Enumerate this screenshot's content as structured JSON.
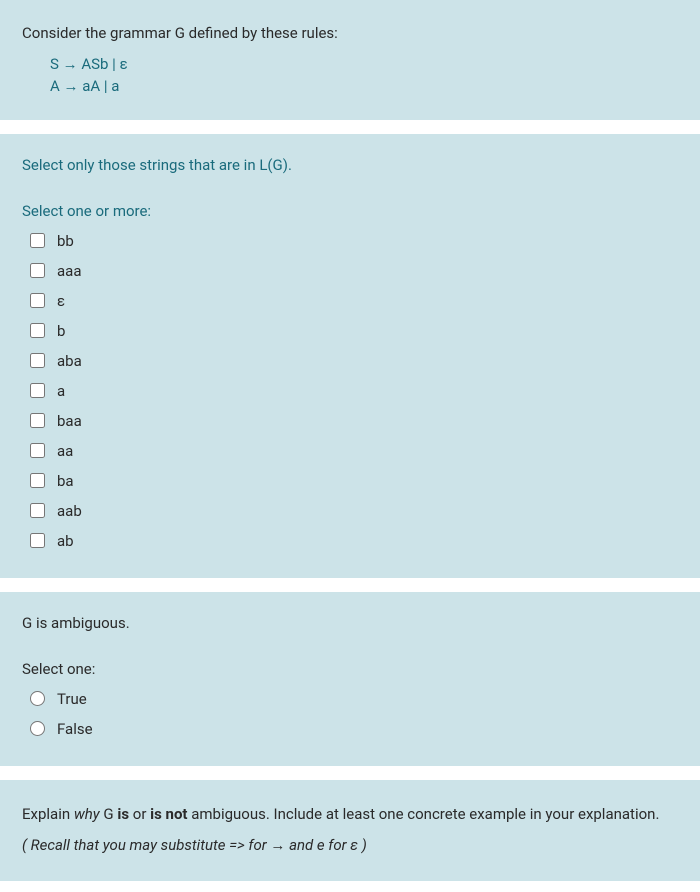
{
  "colors": {
    "panel_bg": "#cce3e8",
    "text_primary": "#2a2a2a",
    "text_accent": "#1a6b7c"
  },
  "q1": {
    "intro": "Consider the grammar G defined by these rules:",
    "rule1": "S → ASb | ε",
    "rule2": "A → aA | a"
  },
  "q2": {
    "prompt": "Select only those strings that are in L(G).",
    "instruction": "Select one or more:",
    "options": [
      "bb",
      "aaa",
      "ε",
      "b",
      "aba",
      "a",
      "baa",
      "aa",
      "ba",
      "aab",
      "ab"
    ]
  },
  "q3": {
    "prompt": "G is ambiguous.",
    "instruction": "Select one:",
    "options": [
      "True",
      "False"
    ]
  },
  "q4": {
    "pre": "Explain ",
    "why_italic": "why",
    "mid1": " G ",
    "is_bold": "is",
    "mid2": " or ",
    "isnot_bold": "is not",
    "post": " ambiguous.  Include at least one concrete example in your explanation.",
    "recall_pre": "( Recall that you may substitute   =>  for  →   and   e  for  ε )"
  }
}
